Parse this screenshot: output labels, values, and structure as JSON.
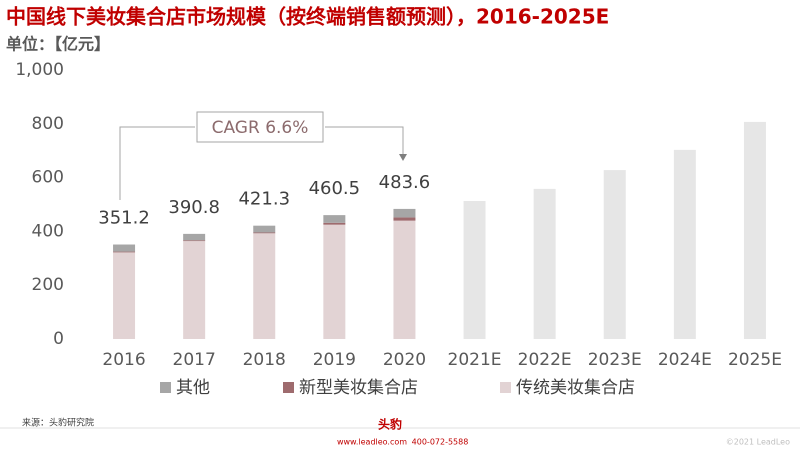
{
  "chart_data": {
    "type": "stacked_bar",
    "title": "中国线下美妆集合店市场规模（按终端销售额预测），2016-2025E",
    "subtitle": "单位：【亿元】",
    "categories": [
      "2016",
      "2017",
      "2018",
      "2019",
      "2020",
      "2021E",
      "2022E",
      "2023E",
      "2024E",
      "2025E"
    ],
    "series": [
      {
        "name": "其他",
        "color": "#a6a6a6",
        "values": [
          26.2,
          23.8,
          25.3,
          28.5,
          31.6,
          null,
          null,
          null,
          null,
          null
        ]
      },
      {
        "name": "新型美妆集合店",
        "color": "#9e6b6e",
        "values": [
          3,
          3,
          3,
          7,
          12,
          null,
          null,
          null,
          null,
          null
        ]
      },
      {
        "name": "传统美妆集合店",
        "color": "#e2d3d4",
        "values": [
          322,
          364,
          393,
          425,
          440,
          null,
          null,
          null,
          null,
          null
        ]
      }
    ],
    "forecast_values": [
      null,
      null,
      null,
      null,
      null,
      513,
      558,
      628,
      703,
      807
    ],
    "forecast_color": "#e6e6e6",
    "total_labels": [
      351.2,
      390.8,
      421.3,
      460.5,
      483.6,
      null,
      null,
      null,
      null,
      null
    ],
    "annotation": "CAGR 6.6%",
    "ylim": [
      0,
      1000
    ],
    "yticks": [
      0,
      200,
      400,
      600,
      800,
      {
        "value": 1000,
        "label": "1,000"
      }
    ],
    "grid": false
  },
  "footer": {
    "source": "来源：头豹研究院",
    "logo": "头豹",
    "website": "www.leadleo.com",
    "phone": "400-072-5588",
    "copyright": "©2021 LeadLeo"
  }
}
